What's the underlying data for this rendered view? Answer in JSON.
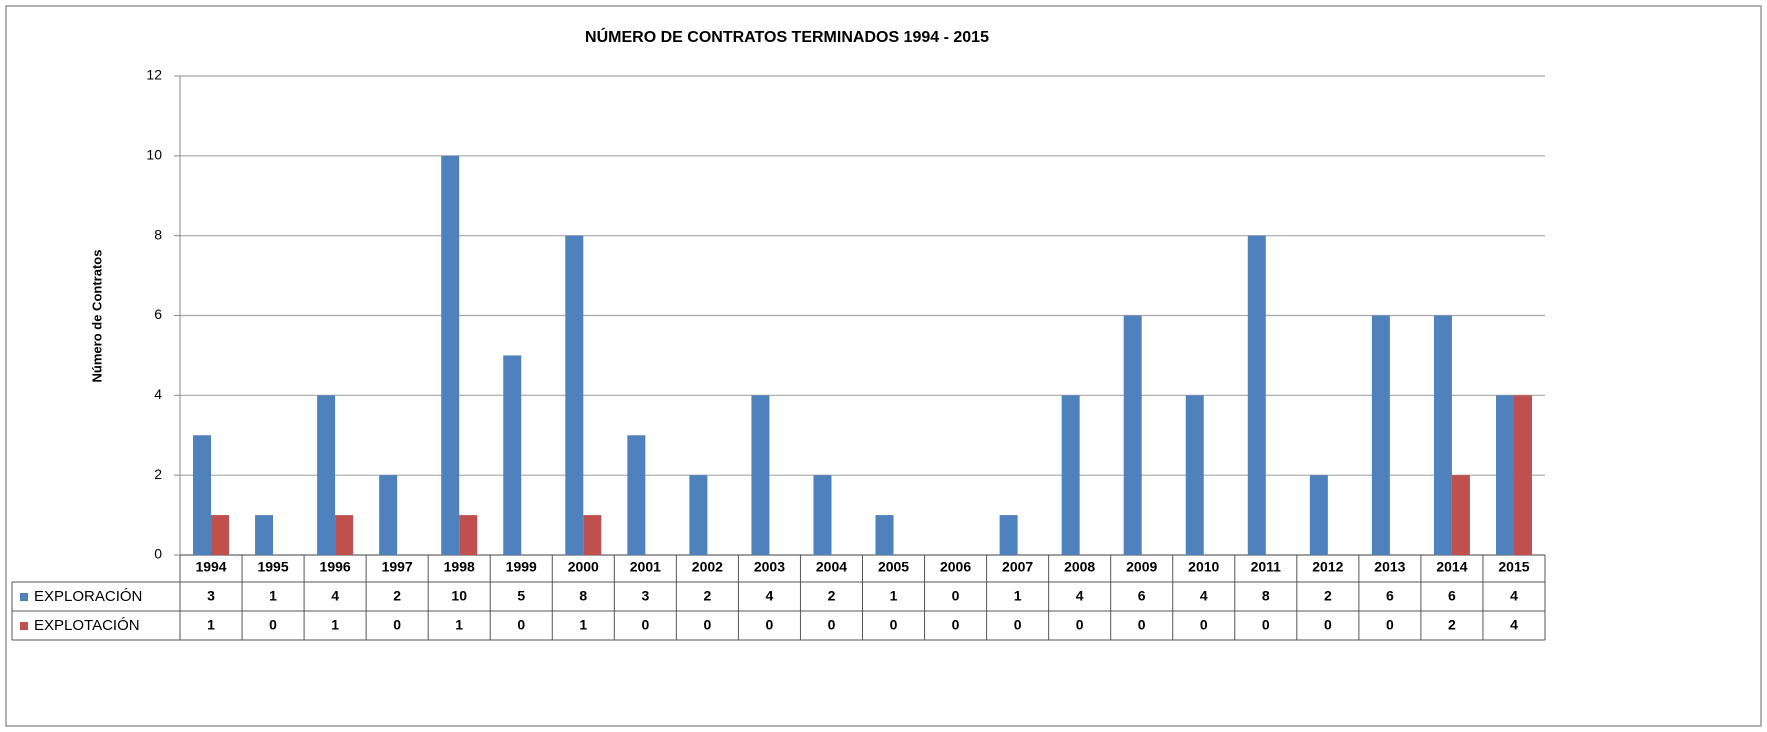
{
  "chart_data": {
    "type": "bar",
    "title": "NÚMERO  DE CONTRATOS  TERMINADOS 1994 - 2015",
    "y_label": "Número de Contratos",
    "categories": [
      "1994",
      "1995",
      "1996",
      "1997",
      "1998",
      "1999",
      "2000",
      "2001",
      "2002",
      "2003",
      "2004",
      "2005",
      "2006",
      "2007",
      "2008",
      "2009",
      "2010",
      "2011",
      "2012",
      "2013",
      "2014",
      "2015"
    ],
    "series": [
      {
        "name": "EXPLORACIÓN",
        "color": "#4f81bd",
        "values": [
          3,
          1,
          4,
          2,
          10,
          5,
          8,
          3,
          2,
          4,
          2,
          1,
          0,
          1,
          4,
          6,
          4,
          8,
          2,
          6,
          6,
          4
        ]
      },
      {
        "name": "EXPLOTACIÓN",
        "color": "#c0504d",
        "values": [
          1,
          0,
          1,
          0,
          1,
          0,
          1,
          0,
          0,
          0,
          0,
          0,
          0,
          0,
          0,
          0,
          0,
          0,
          0,
          0,
          2,
          4
        ]
      }
    ],
    "ylim": [
      0,
      12
    ],
    "yticks": [
      0,
      2,
      4,
      6,
      8,
      10,
      12
    ],
    "grid": true
  }
}
